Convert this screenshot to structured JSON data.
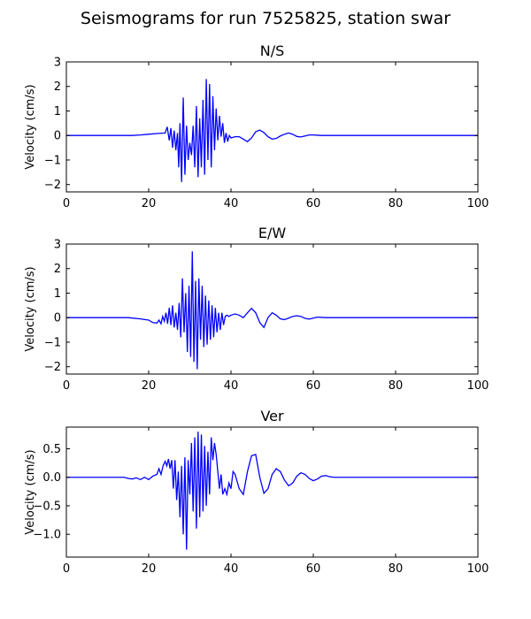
{
  "figure": {
    "suptitle": "Seismograms for run 7525825, station swar"
  },
  "chart_data": [
    {
      "type": "line",
      "title": "N/S",
      "xlabel": "",
      "ylabel": "Velocity (cm/s)",
      "xlim": [
        0,
        100
      ],
      "ylim": [
        -2.3,
        3.0
      ],
      "xticks": [
        0,
        20,
        40,
        60,
        80,
        100
      ],
      "yticks": [
        -2,
        -1,
        0,
        1,
        2,
        3
      ],
      "line_color": "#0000ff",
      "grid": false,
      "series": [
        {
          "x": [
            0,
            16,
            18,
            20,
            22,
            24,
            24.5,
            25,
            25.4,
            25.8,
            26.2,
            26.6,
            27,
            27.3,
            27.6,
            28,
            28.4,
            28.8,
            29.2,
            29.6,
            30,
            30.4,
            30.8,
            31.2,
            31.6,
            32,
            32.4,
            32.8,
            33.2,
            33.6,
            34,
            34.4,
            34.8,
            35.2,
            35.6,
            36,
            36.4,
            36.8,
            37.2,
            37.6,
            38,
            38.4,
            38.8,
            39.2,
            39.6,
            40,
            41,
            42,
            43,
            44,
            45,
            46,
            47,
            48,
            49,
            50,
            51,
            52,
            53,
            54,
            55,
            56,
            57,
            58,
            59,
            60,
            61,
            62,
            63,
            64,
            65,
            70,
            80,
            100
          ],
          "y": [
            0,
            0,
            0.02,
            0.05,
            0.08,
            0.1,
            0.35,
            -0.2,
            0.3,
            -0.5,
            0.2,
            -0.6,
            0.1,
            -1.3,
            0.5,
            -1.9,
            1.55,
            -1.6,
            0.4,
            -1.0,
            -0.3,
            -0.8,
            0.4,
            -1.3,
            1.2,
            -1.7,
            0.7,
            -1.3,
            1.45,
            -1.6,
            2.3,
            -1.0,
            2.1,
            -1.3,
            1.6,
            -0.6,
            1.1,
            -0.2,
            0.8,
            -0.05,
            0.5,
            -0.3,
            0.1,
            -0.25,
            0.0,
            -0.1,
            -0.05,
            -0.05,
            -0.15,
            -0.25,
            -0.1,
            0.15,
            0.22,
            0.12,
            -0.05,
            -0.15,
            -0.12,
            -0.02,
            0.05,
            0.1,
            0.05,
            -0.04,
            -0.06,
            -0.02,
            0.02,
            0.02,
            0.01,
            0,
            0,
            0,
            0,
            0,
            0,
            0
          ]
        }
      ]
    },
    {
      "type": "line",
      "title": "E/W",
      "xlabel": "",
      "ylabel": "Velocity (cm/s)",
      "xlim": [
        0,
        100
      ],
      "ylim": [
        -2.3,
        3.0
      ],
      "xticks": [
        0,
        20,
        40,
        60,
        80,
        100
      ],
      "yticks": [
        -2,
        -1,
        0,
        1,
        2,
        3
      ],
      "line_color": "#0000ff",
      "grid": false,
      "series": [
        {
          "x": [
            0,
            15,
            18,
            20,
            21,
            22,
            22.5,
            23,
            23.4,
            23.8,
            24.2,
            24.6,
            25,
            25.4,
            25.8,
            26.2,
            26.6,
            27,
            27.4,
            27.8,
            28.2,
            28.6,
            29,
            29.4,
            29.8,
            30.2,
            30.6,
            31,
            31.4,
            31.8,
            32.2,
            32.6,
            33,
            33.4,
            33.8,
            34.2,
            34.6,
            35,
            35.4,
            35.8,
            36.2,
            36.6,
            37,
            37.4,
            37.8,
            38.2,
            38.6,
            39,
            39.5,
            40,
            41,
            42,
            43,
            44,
            45,
            46,
            47,
            48,
            49,
            50,
            51,
            52,
            53,
            54,
            55,
            56,
            57,
            58,
            59,
            60,
            61,
            62,
            63,
            64,
            65,
            70,
            80,
            100
          ],
          "y": [
            0,
            0,
            -0.05,
            -0.1,
            -0.2,
            -0.22,
            -0.1,
            -0.25,
            0.05,
            -0.15,
            0.2,
            -0.25,
            0.4,
            -0.3,
            0.5,
            -0.4,
            0.2,
            -0.5,
            0.6,
            -0.8,
            1.6,
            -0.6,
            1.0,
            -1.4,
            1.3,
            -1.6,
            2.7,
            -1.8,
            1.5,
            -2.1,
            1.6,
            -0.9,
            1.3,
            -1.2,
            0.9,
            -1.1,
            0.7,
            -0.9,
            0.5,
            -0.8,
            0.4,
            -0.6,
            0.2,
            -0.5,
            0.2,
            -0.3,
            0.05,
            0.1,
            0.05,
            0.1,
            0.15,
            0.1,
            0.0,
            0.2,
            0.38,
            0.2,
            -0.2,
            -0.4,
            0.0,
            0.2,
            0.1,
            -0.05,
            -0.08,
            -0.02,
            0.05,
            0.08,
            0.05,
            -0.03,
            -0.06,
            -0.02,
            0.02,
            0.01,
            0,
            0,
            0,
            0,
            0,
            0
          ]
        }
      ]
    },
    {
      "type": "line",
      "title": "Ver",
      "xlabel": "",
      "ylabel": "Velocity (cm/s)",
      "xlim": [
        0,
        100
      ],
      "ylim": [
        -1.4,
        0.88
      ],
      "xticks": [
        0,
        20,
        40,
        60,
        80,
        100
      ],
      "yticks": [
        -1.0,
        -0.5,
        0.0,
        0.5
      ],
      "line_color": "#0000ff",
      "grid": false,
      "series": [
        {
          "x": [
            0,
            14,
            15,
            16,
            17,
            18,
            19,
            20,
            21,
            22,
            22.5,
            23,
            23.5,
            24,
            24.4,
            24.8,
            25.2,
            25.6,
            26,
            26.4,
            26.8,
            27.2,
            27.6,
            28,
            28.4,
            28.8,
            29.2,
            29.6,
            30,
            30.4,
            30.8,
            31.2,
            31.6,
            32,
            32.4,
            32.8,
            33.2,
            33.6,
            34,
            34.4,
            34.8,
            35.2,
            35.6,
            36,
            36.4,
            36.8,
            37.2,
            37.6,
            38,
            38.5,
            39,
            39.5,
            40,
            40.5,
            41,
            42,
            43,
            44,
            45,
            46,
            47,
            48,
            49,
            50,
            51,
            52,
            53,
            54,
            55,
            56,
            57,
            58,
            59,
            60,
            61,
            62,
            63,
            64,
            65,
            70,
            80,
            100
          ],
          "y": [
            0,
            0,
            -0.02,
            -0.03,
            -0.01,
            -0.04,
            0.0,
            -0.04,
            0.02,
            0.05,
            0.15,
            0.05,
            0.2,
            0.28,
            0.2,
            0.32,
            0.15,
            0.3,
            -0.2,
            0.3,
            -0.4,
            0.1,
            -0.7,
            0.2,
            -1.0,
            0.35,
            -1.27,
            0.3,
            -0.3,
            0.6,
            -0.6,
            0.7,
            -0.9,
            0.8,
            -0.7,
            0.75,
            -0.6,
            0.55,
            -0.5,
            0.45,
            -0.3,
            0.7,
            0.3,
            0.6,
            0.4,
            0.1,
            -0.2,
            0.05,
            -0.3,
            -0.2,
            -0.3,
            -0.1,
            -0.2,
            0.1,
            0.05,
            -0.2,
            -0.3,
            0.1,
            0.38,
            0.4,
            0.0,
            -0.28,
            -0.2,
            0.05,
            0.15,
            0.1,
            -0.05,
            -0.15,
            -0.1,
            0.02,
            0.08,
            0.05,
            -0.02,
            -0.06,
            -0.03,
            0.02,
            0.03,
            0.01,
            0,
            0,
            0,
            0
          ]
        }
      ]
    }
  ]
}
